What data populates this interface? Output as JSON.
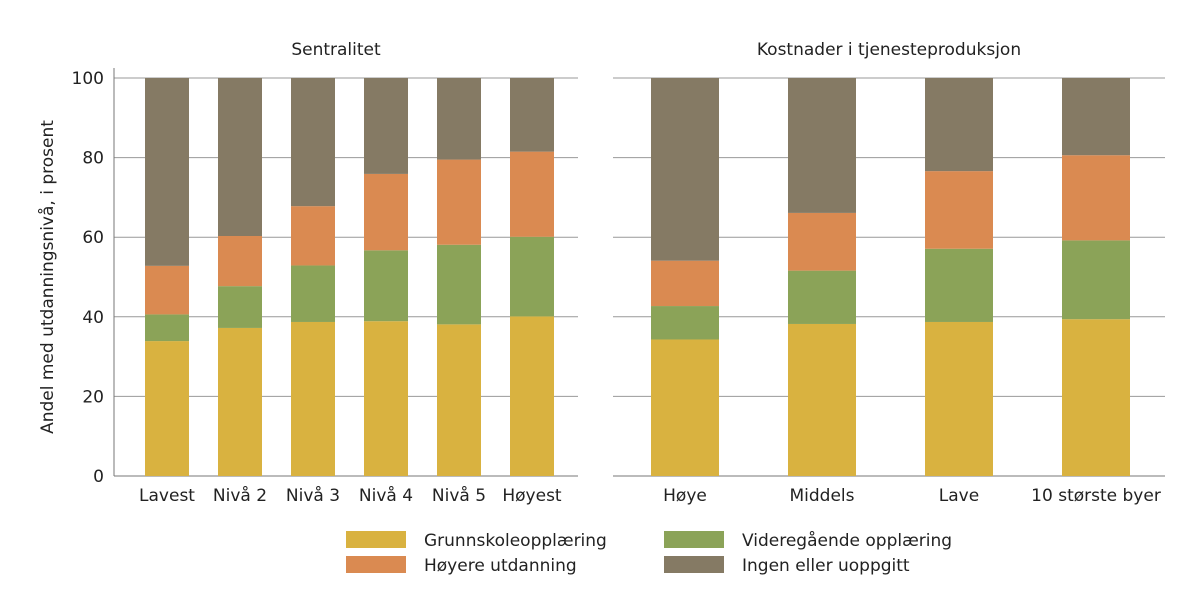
{
  "chart_data": [
    {
      "type": "bar",
      "stacked": true,
      "title": "Sentralitet",
      "ylabel": "Andel med utdanningsnivå, i prosent",
      "ylim": [
        0,
        100
      ],
      "yticks": [
        0,
        20,
        40,
        60,
        80,
        100
      ],
      "grid": true,
      "categories": [
        "Lavest",
        "Nivå 2",
        "Nivå 3",
        "Nivå 4",
        "Nivå 5",
        "Høyest"
      ],
      "series": [
        {
          "name": "Grunnskoleopplæring",
          "color": "#d9b240",
          "values": [
            33.9,
            37.2,
            38.7,
            38.9,
            38.1,
            40.1
          ]
        },
        {
          "name": "Videregående opplæring",
          "color": "#8ba358",
          "values": [
            6.7,
            10.5,
            14.2,
            17.8,
            20.0,
            20.0
          ]
        },
        {
          "name": "Høyere utdanning",
          "color": "#da8a51",
          "values": [
            12.2,
            12.6,
            14.9,
            19.2,
            21.4,
            21.4
          ]
        },
        {
          "name": "Ingen eller uoppgitt",
          "color": "#857a64",
          "values": [
            47.2,
            39.7,
            32.2,
            24.1,
            20.5,
            18.5
          ]
        }
      ]
    },
    {
      "type": "bar",
      "stacked": true,
      "title": "Kostnader i tjenesteproduksjon",
      "ylim": [
        0,
        100
      ],
      "grid": true,
      "categories": [
        "Høye",
        "Middels",
        "Lave",
        "10 største byer"
      ],
      "series": [
        {
          "name": "Grunnskoleopplæring",
          "color": "#d9b240",
          "values": [
            34.3,
            38.2,
            38.7,
            39.4
          ]
        },
        {
          "name": "Videregående opplæring",
          "color": "#8ba358",
          "values": [
            8.4,
            13.4,
            18.4,
            19.8
          ]
        },
        {
          "name": "Høyere utdanning",
          "color": "#da8a51",
          "values": [
            11.4,
            14.5,
            19.5,
            21.4
          ]
        },
        {
          "name": "Ingen eller uoppgitt",
          "color": "#857a64",
          "values": [
            45.9,
            33.9,
            23.4,
            19.4
          ]
        }
      ]
    }
  ],
  "legend": {
    "placement": "bottom",
    "items": [
      "Grunnskoleopplæring",
      "Videregående opplæring",
      "Høyere utdanning",
      "Ingen eller uoppgitt"
    ]
  }
}
